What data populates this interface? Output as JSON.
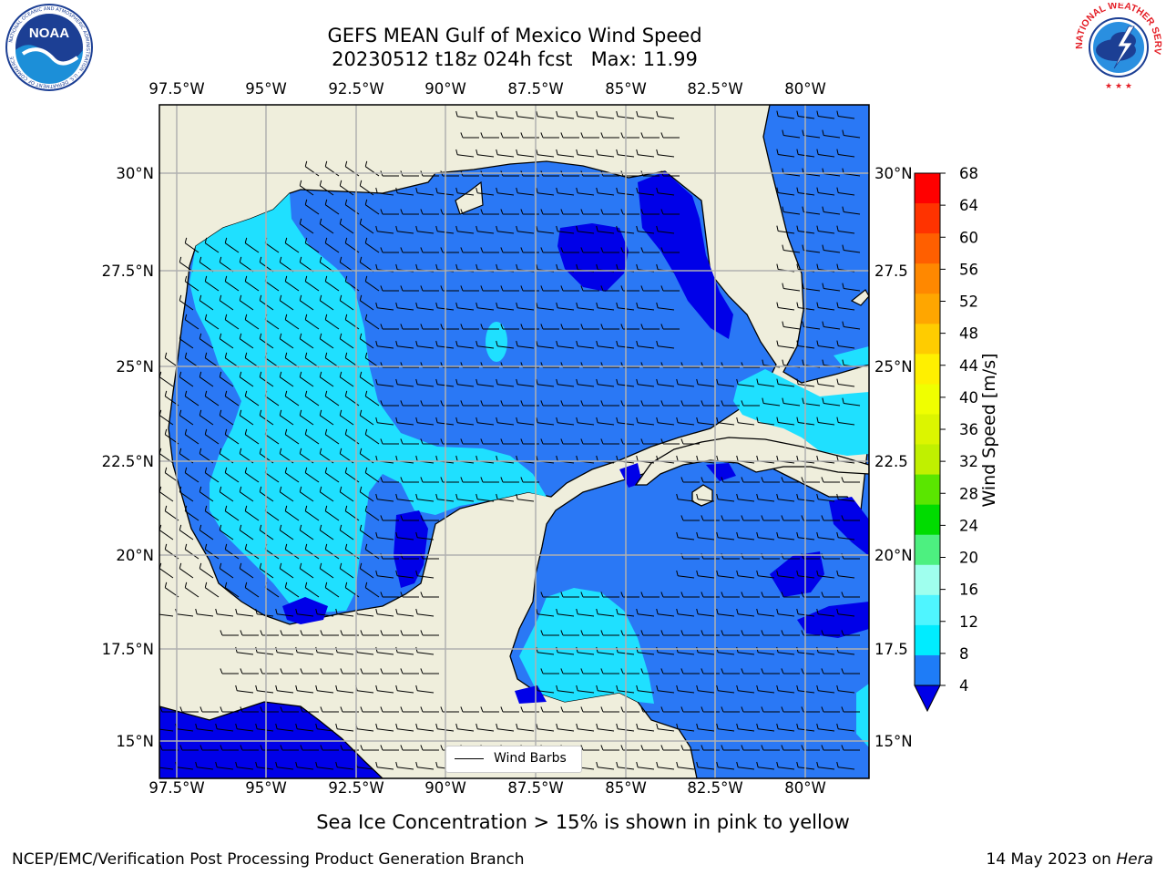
{
  "header": {
    "title_line1": "GEFS MEAN Gulf of Mexico Wind Speed",
    "title_line2": "20230512 t18z 024h fcst   Max: 11.99"
  },
  "logos": {
    "left": {
      "name": "noaa-logo",
      "text": "NOAA",
      "ring_text": "NATIONAL OCEANIC AND ATMOSPHERIC ADMINISTRATION · U.S. DEPARTMENT OF COMMERCE"
    },
    "right": {
      "name": "nws-logo",
      "ring_text": "NATIONAL WEATHER SERVICE"
    }
  },
  "map": {
    "lon_labels": [
      "97.5°W",
      "95°W",
      "92.5°W",
      "90°W",
      "87.5°W",
      "85°W",
      "82.5°W",
      "80°W"
    ],
    "lat_labels": [
      "30°N",
      "27.5°N",
      "25°N",
      "22.5°N",
      "20°N",
      "17.5°N",
      "15°N"
    ],
    "right_lat_labels": [
      "30°N",
      "27.5",
      "25°N",
      "22.5",
      "20°N",
      "17.5",
      "15°N"
    ],
    "legend": "Wind Barbs",
    "colors": {
      "land": "#efeedc",
      "ocean_4_8": "#2a78f5",
      "ocean_8_12": "#1fe0ff",
      "ocean_under_4": "#0000e8",
      "gridline": "#b0b0b0"
    }
  },
  "colorbar": {
    "label": "Wind Speed [m/s]",
    "ticks": [
      "68",
      "64",
      "60",
      "56",
      "52",
      "48",
      "44",
      "40",
      "36",
      "32",
      "28",
      "24",
      "20",
      "16",
      "12",
      "8",
      "4"
    ],
    "colors_top_to_bottom": [
      "#ff0000",
      "#ff3300",
      "#ff5f00",
      "#ff8800",
      "#ffa600",
      "#ffcc00",
      "#fff000",
      "#f0ff00",
      "#dcf500",
      "#c0f000",
      "#5ae600",
      "#00dc00",
      "#4df080",
      "#9fffee",
      "#4ff5ff",
      "#00ecff",
      "#1e7cf7"
    ],
    "under_color": "#0000e8"
  },
  "footer": {
    "note": "Sea Ice Concentration > 15% is shown in pink to yellow",
    "credit": "NCEP/EMC/Verification Post Processing Product Generation Branch",
    "date": "14 May 2023 on",
    "host": "Hera"
  }
}
